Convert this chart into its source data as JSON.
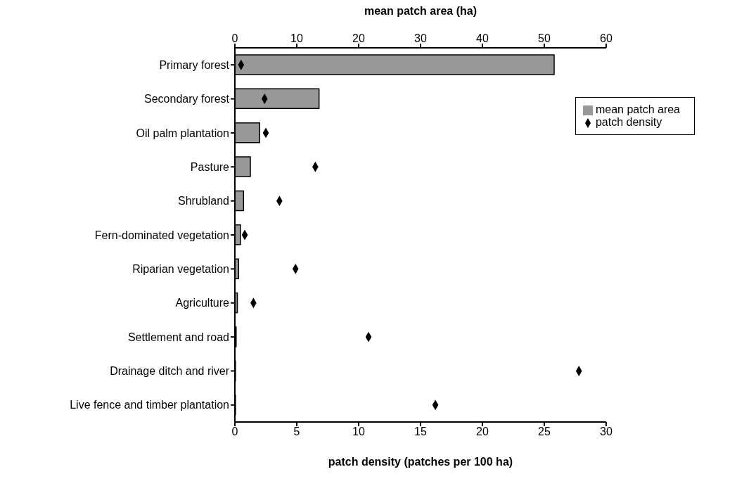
{
  "chart_data": {
    "type": "bar",
    "orientation": "horizontal",
    "categories": [
      "Primary forest",
      "Secondary forest",
      "Oil palm plantation",
      "Pasture",
      "Shrubland",
      "Fern-dominated vegetation",
      "Riparian vegetation",
      "Agriculture",
      "Settlement and road",
      "Drainage ditch and river",
      "Live fence and timber plantation"
    ],
    "series": [
      {
        "name": "mean patch area",
        "axis": "x2",
        "color": "#999999",
        "values": [
          51.6,
          13.6,
          4.0,
          2.5,
          1.4,
          0.9,
          0.6,
          0.4,
          0.2,
          0.1,
          0.1
        ]
      },
      {
        "name": "patch density",
        "type": "scatter",
        "color": "#000000",
        "values": [
          0.5,
          2.4,
          2.5,
          6.5,
          3.6,
          0.8,
          4.9,
          1.5,
          10.8,
          27.8,
          16.2
        ]
      }
    ],
    "xlabel": "patch density (patches per 100 ha)",
    "x2label": "mean patch area (ha)",
    "xlim": [
      0,
      30
    ],
    "xticks": [
      0,
      5,
      10,
      15,
      20,
      25,
      30
    ],
    "x2lim": [
      0,
      60
    ],
    "x2ticks": [
      0,
      10,
      20,
      30,
      40,
      50,
      60
    ],
    "marker": "diamond",
    "legend": "top right",
    "grid": false
  }
}
